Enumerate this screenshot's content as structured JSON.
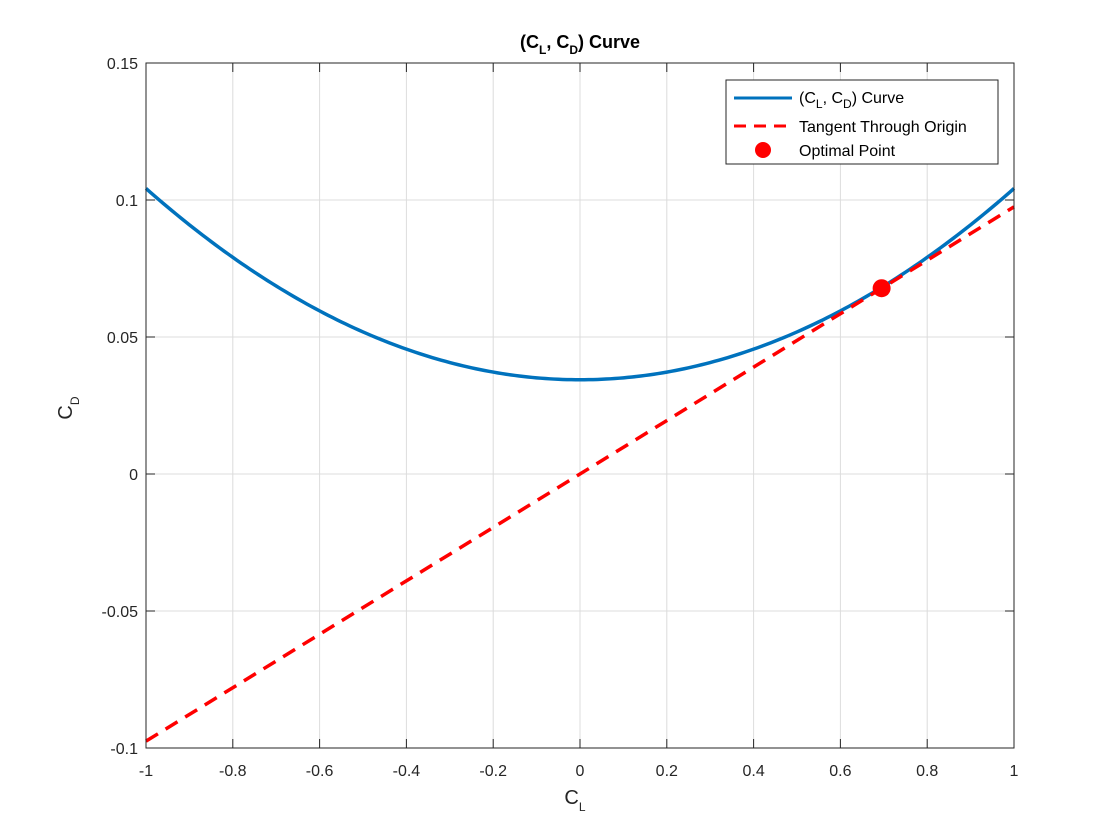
{
  "chart_data": {
    "type": "line",
    "title": {
      "main": "(C",
      "sub1": "L",
      "sep": ", C",
      "sub2": "D",
      "tail": ") Curve"
    },
    "xlabel": {
      "main": "C",
      "sub": "L"
    },
    "ylabel": {
      "main": "C",
      "sub": "D"
    },
    "xlim": [
      -1,
      1
    ],
    "ylim": [
      -0.1,
      0.15
    ],
    "xticks": [
      -1,
      -0.8,
      -0.6,
      -0.4,
      -0.2,
      0,
      0.2,
      0.4,
      0.6,
      0.8,
      1
    ],
    "xtick_labels": [
      "-1",
      "-0.8",
      "-0.6",
      "-0.4",
      "-0.2",
      "0",
      "0.2",
      "0.4",
      "0.6",
      "0.8",
      "1"
    ],
    "yticks": [
      -0.1,
      -0.05,
      0,
      0.05,
      0.1,
      0.15
    ],
    "ytick_labels": [
      "-0.1",
      "-0.05",
      "0",
      "0.05",
      "0.1",
      "0.15"
    ],
    "grid": true,
    "legend_position": "top-right",
    "series": [
      {
        "name": "(C_L, C_D) Curve",
        "legend": {
          "main": "(C",
          "sub1": "L",
          "sep": ", C",
          "sub2": "D",
          "tail": ") Curve"
        },
        "style": "solid",
        "color": "#0072BD",
        "x": [
          -1,
          -0.9,
          -0.8,
          -0.7,
          -0.6,
          -0.5,
          -0.4,
          -0.3,
          -0.2,
          -0.1,
          0,
          0.1,
          0.2,
          0.3,
          0.4,
          0.5,
          0.6,
          0.7,
          0.8,
          0.9,
          1
        ],
        "y": [
          0.1042,
          0.0887,
          0.075,
          0.0629,
          0.0524,
          0.0436,
          0.0365,
          0.0311,
          0.0273,
          0.0251,
          0.0344,
          0.0351,
          0.0373,
          0.0411,
          0.0465,
          0.0536,
          0.0624,
          0.0729,
          0.085,
          0.0987,
          0.1042
        ]
      },
      {
        "name": "Tangent Through Origin",
        "style": "dashed",
        "color": "#FF0000",
        "x": [
          -1,
          1
        ],
        "y": [
          -0.0975,
          0.0975
        ]
      }
    ],
    "points": [
      {
        "name": "Optimal Point",
        "x": 0.695,
        "y": 0.0678,
        "color": "#FF0000"
      }
    ]
  }
}
